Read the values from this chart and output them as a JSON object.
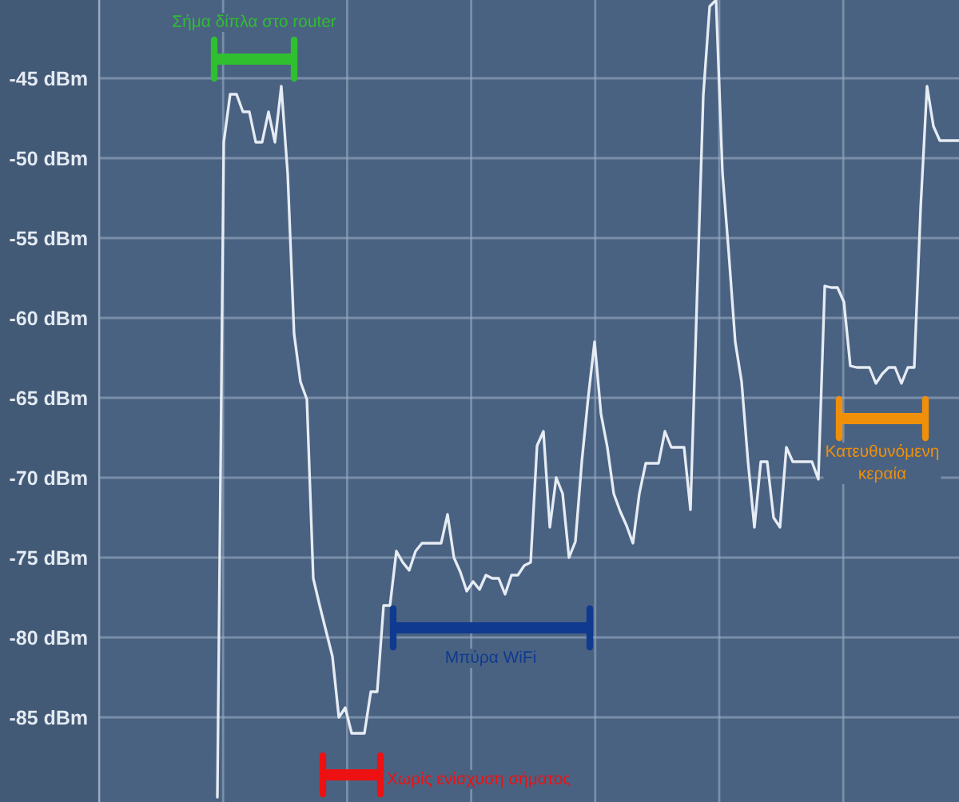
{
  "chart_data": {
    "type": "line",
    "categories": [
      null,
      null,
      null,
      null,
      null,
      null,
      null,
      null,
      null,
      null,
      null,
      null,
      null,
      null,
      null,
      null,
      null,
      null,
      null,
      null,
      null,
      null,
      null,
      null,
      null,
      null,
      null,
      null,
      null,
      null,
      null,
      null,
      null,
      null,
      null,
      null,
      null,
      null,
      null,
      null,
      null,
      null,
      null,
      null,
      null,
      null,
      null,
      null,
      null,
      null,
      null,
      null,
      null,
      null,
      null,
      null,
      null,
      null,
      null,
      null,
      null,
      null,
      null,
      null,
      null,
      null,
      null,
      null,
      null,
      null,
      null,
      null,
      null,
      null,
      null,
      null,
      null,
      null,
      null,
      null,
      null,
      null,
      null,
      null,
      null,
      null,
      null,
      null,
      null,
      null,
      null,
      null,
      null,
      null,
      null,
      null,
      null,
      null,
      null,
      null,
      null,
      null,
      null,
      null,
      null,
      null,
      null,
      null,
      null,
      null,
      null,
      null,
      null,
      null,
      null,
      null,
      null
    ],
    "series": [
      {
        "color": "#e6ecf3",
        "values": [
          -90,
          -49,
          -46,
          -46,
          -47.1,
          -47.1,
          -49,
          -49,
          -47.1,
          -49,
          -45.5,
          -51,
          -61,
          -64,
          -65.1,
          -76.3,
          -78,
          -79.6,
          -81.2,
          -85,
          -84.4,
          -86,
          -86,
          -86,
          -83.4,
          -83.4,
          -78,
          -78,
          -74.6,
          -75.3,
          -75.8,
          -74.6,
          -74.1,
          -74.1,
          -74.1,
          -74.1,
          -72.3,
          -75,
          -75.9,
          -77.1,
          -76.5,
          -77,
          -76.1,
          -76.3,
          -76.3,
          -77.3,
          -76.1,
          -76.1,
          -75.5,
          -75.3,
          -68,
          -67.1,
          -73.1,
          -70,
          -71,
          -75,
          -74,
          -69,
          -65,
          -61.5,
          -66,
          -68.1,
          -71,
          -72.1,
          -73,
          -74.1,
          -71,
          -69.1,
          -69.1,
          -69.1,
          -67.1,
          -68.1,
          -68.1,
          -68.1,
          -72,
          -59,
          -46.1,
          -40.5,
          -40.1,
          -50.9,
          -56,
          -61.5,
          -64,
          -69,
          -73.1,
          -69,
          -69,
          -72.5,
          -73.1,
          -68.1,
          -69,
          -69,
          -69,
          -69,
          -70.1,
          -58,
          -58.1,
          -58.1,
          -59,
          -63,
          -63.1,
          -63.1,
          -63.1,
          -64.1,
          -63.5,
          -63.1,
          -63.1,
          -64.1,
          -63.1,
          -63.1,
          -53.1,
          -45.5,
          -48,
          -48.9,
          -48.9,
          -48.9,
          -48.9
        ]
      }
    ],
    "ylim": [
      -90.3,
      -40.1
    ],
    "yticks": [
      {
        "value": -85,
        "label": "-85 dBm"
      },
      {
        "value": -80,
        "label": "-80 dBm"
      },
      {
        "value": -75,
        "label": "-75 dBm"
      },
      {
        "value": -70,
        "label": "-70 dBm"
      },
      {
        "value": -65,
        "label": "-65 dBm"
      },
      {
        "value": -60,
        "label": "-60 dBm"
      },
      {
        "value": -55,
        "label": "-55 dBm"
      },
      {
        "value": -50,
        "label": "-50 dBm"
      },
      {
        "value": -45,
        "label": "-45 dBm"
      }
    ],
    "tick_labels": "y",
    "grid": true,
    "marker": "none",
    "line_style": "solid",
    "annotations": [
      "Σήμα δίπλα στο router",
      "Χωρίς ενίσχυση σήματος",
      "Μπύρα WiFi",
      "Κατευθυνόμενη\nκεραία"
    ]
  }
}
